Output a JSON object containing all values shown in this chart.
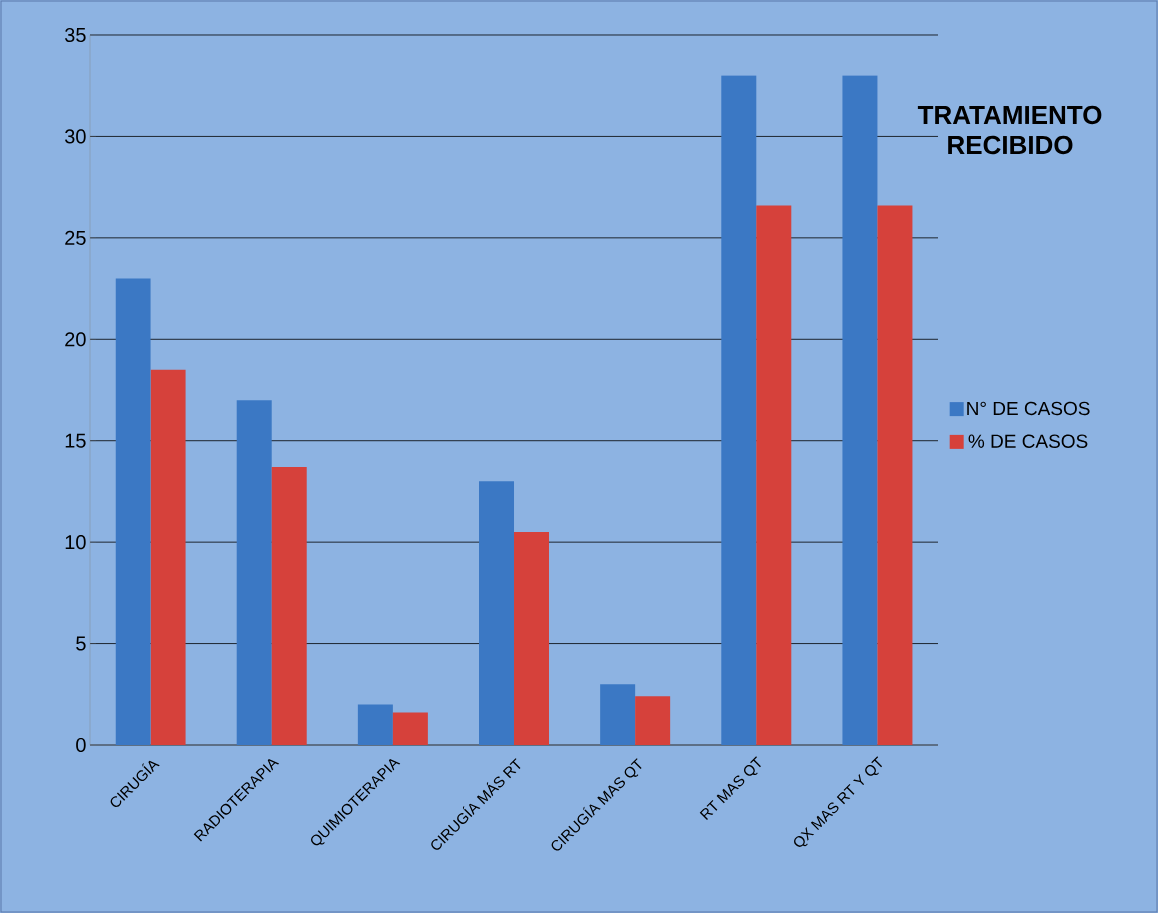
{
  "chart_data": {
    "type": "bar",
    "title": "TRATAMIENTO RECIBIDO",
    "categories": [
      "CIRUGÍA",
      "RADIOTERAPIA",
      "QUIMIOTERAPIA",
      "CIRUGÍA MÁS RT",
      "CIRUGÍA MAS QT",
      "RT MAS QT",
      "QX MAS RT Y QT"
    ],
    "series": [
      {
        "name": "N° DE CASOS",
        "color": "#3b78c4",
        "values": [
          23,
          17,
          2,
          13,
          3,
          33,
          33
        ]
      },
      {
        "name": "% DE CASOS",
        "color": "#d6413b",
        "values": [
          18.5,
          13.7,
          1.6,
          10.5,
          2.4,
          26.6,
          26.6
        ]
      }
    ],
    "ylim": [
      0,
      35
    ],
    "yticks": [
      0,
      5,
      10,
      15,
      20,
      25,
      30,
      35
    ],
    "grid": "y",
    "legend": "right"
  }
}
